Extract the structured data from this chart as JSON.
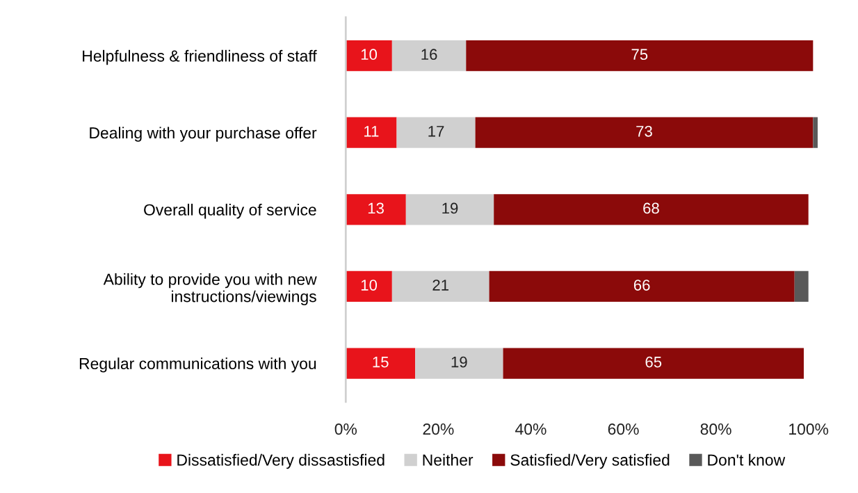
{
  "chart_data": {
    "type": "bar",
    "orientation": "horizontal",
    "stacked": true,
    "categories": [
      "Helpfulness & friendliness of staff",
      "Dealing with your purchase offer",
      "Overall quality of service",
      "Ability to provide you with new\ninstructions/viewings",
      "Regular communications with you"
    ],
    "series": [
      {
        "name": "Dissatisfied/Very dissastisfied",
        "color": "#e8141b",
        "values": [
          10,
          11,
          13,
          10,
          15
        ],
        "value_labels": [
          "10",
          "11",
          "13",
          "10",
          "15"
        ]
      },
      {
        "name": "Neither",
        "color": "#d0d0d0",
        "values": [
          16,
          17,
          19,
          21,
          19
        ],
        "value_labels": [
          "16",
          "17",
          "19",
          "21",
          "19"
        ]
      },
      {
        "name": "Satisfied/Very satisfied",
        "color": "#8b0a0a",
        "values": [
          75,
          73,
          68,
          66,
          65
        ],
        "value_labels": [
          "75",
          "73",
          "68",
          "66",
          "65"
        ]
      },
      {
        "name": "Don't know",
        "color": "#595959",
        "values": [
          0,
          1,
          0,
          3,
          0
        ],
        "value_labels": [
          null,
          null,
          null,
          null,
          null
        ]
      }
    ],
    "xlim": [
      0,
      102
    ],
    "xticks": [
      {
        "value": 0,
        "label": "0%"
      },
      {
        "value": 20,
        "label": "20%"
      },
      {
        "value": 40,
        "label": "40%"
      },
      {
        "value": 60,
        "label": "60%"
      },
      {
        "value": 80,
        "label": "80%"
      },
      {
        "value": 100,
        "label": "100%"
      }
    ],
    "grid": false,
    "legend": "bottom"
  }
}
